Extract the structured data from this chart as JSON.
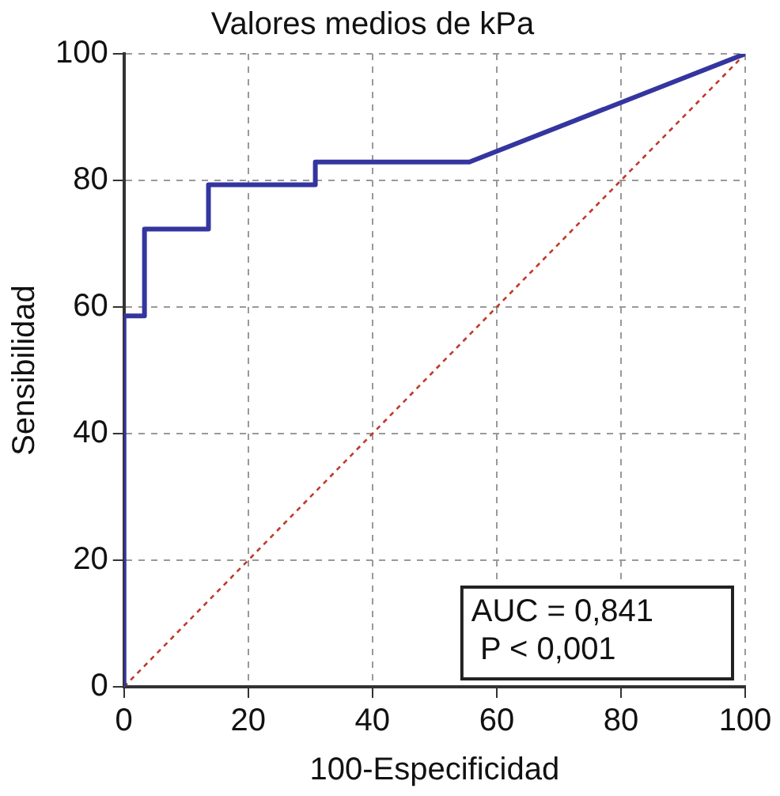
{
  "chart_data": {
    "type": "line",
    "title": "Valores medios de kPa",
    "xlabel": "100-Especificidad",
    "ylabel": "Sensibilidad",
    "series": [
      {
        "color": "#3535a0",
        "line_style": "solid",
        "x": [
          0,
          0,
          3.3,
          3.3,
          13.6,
          13.6,
          30.8,
          30.8,
          55.6,
          100
        ],
        "values": [
          0,
          58.6,
          58.6,
          72.3,
          72.3,
          79.3,
          79.3,
          82.9,
          82.9,
          100
        ]
      },
      {
        "color": "#c0392b",
        "line_style": "dotted",
        "x": [
          0,
          100
        ],
        "values": [
          0,
          100
        ]
      }
    ],
    "xlim": [
      0,
      100
    ],
    "xticks": [
      0,
      20,
      40,
      60,
      80,
      100
    ],
    "ylim": [
      0,
      100
    ],
    "yticks": [
      0,
      20,
      40,
      60,
      80,
      100
    ],
    "grid": true,
    "legend": false,
    "marker": "none",
    "annotations": [
      "AUC = 0,841\n P < 0,001"
    ]
  }
}
